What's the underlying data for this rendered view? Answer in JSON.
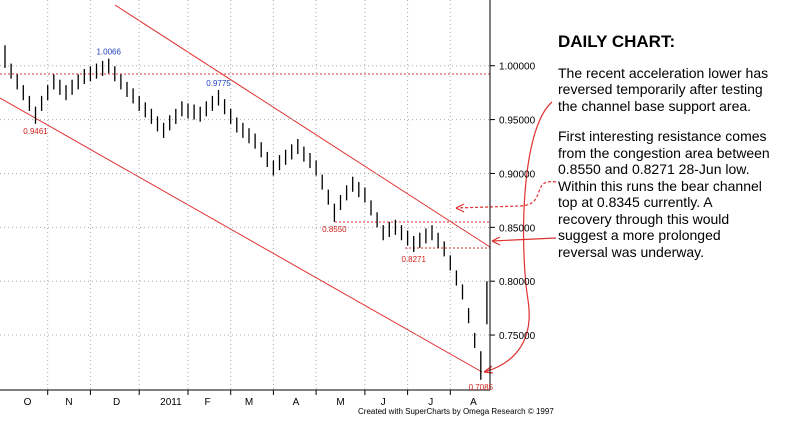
{
  "chart_data": {
    "type": "range_bar",
    "title": "DAILY CHART:",
    "paragraphs": [
      [
        "The recent acceleration lower has",
        "reversed temporarily after testing",
        "the channel base support area."
      ],
      [
        "First interesting resistance comes",
        "from the congestion area between",
        "0.8550 and 0.8271 28-Jun low.",
        "Within this runs the bear channel",
        "top at 0.8345 currently. A",
        "recovery through this would",
        "suggest a more prolonged",
        "reversal was underway."
      ]
    ],
    "footer": "Created with SuperCharts by Omega Research © 1997",
    "color": "#000000",
    "high": [
      1.019,
      1.002,
      0.992,
      0.982,
      0.972,
      0.962,
      0.972,
      0.982,
      0.992,
      0.987,
      0.982,
      0.987,
      0.992,
      0.997,
      0.9995,
      1.002,
      1.0045,
      1.0066,
      0.9995,
      0.992,
      0.985,
      0.979,
      0.972,
      0.966,
      0.96,
      0.953,
      0.947,
      0.954,
      0.96,
      0.967,
      0.965,
      0.964,
      0.962,
      0.967,
      0.972,
      0.9775,
      0.969,
      0.96,
      0.952,
      0.947,
      0.942,
      0.937,
      0.929,
      0.92,
      0.912,
      0.917,
      0.922,
      0.927,
      0.932,
      0.925,
      0.919,
      0.912,
      0.899,
      0.885,
      0.872,
      0.88,
      0.889,
      0.897,
      0.892,
      0.887,
      0.875,
      0.864,
      0.852,
      0.855,
      0.857,
      0.852,
      0.847,
      0.842,
      0.845,
      0.849,
      0.852,
      0.845,
      0.837,
      0.824,
      0.81,
      0.797,
      0.775,
      0.752,
      0.735,
      0.8
    ],
    "low": [
      0.998,
      0.988,
      0.978,
      0.968,
      0.958,
      0.9461,
      0.958,
      0.968,
      0.978,
      0.973,
      0.968,
      0.973,
      0.978,
      0.983,
      0.9855,
      0.988,
      0.9905,
      0.993,
      0.9855,
      0.978,
      0.971,
      0.965,
      0.958,
      0.952,
      0.946,
      0.939,
      0.933,
      0.94,
      0.946,
      0.953,
      0.951,
      0.95,
      0.948,
      0.953,
      0.958,
      0.963,
      0.955,
      0.946,
      0.938,
      0.933,
      0.928,
      0.923,
      0.915,
      0.906,
      0.898,
      0.903,
      0.908,
      0.913,
      0.918,
      0.911,
      0.905,
      0.898,
      0.885,
      0.871,
      0.855,
      0.866,
      0.875,
      0.883,
      0.878,
      0.873,
      0.861,
      0.85,
      0.838,
      0.841,
      0.843,
      0.838,
      0.833,
      0.8271,
      0.831,
      0.835,
      0.838,
      0.831,
      0.823,
      0.81,
      0.796,
      0.783,
      0.761,
      0.738,
      0.7085,
      0.76
    ],
    "high_labels": [
      null,
      null,
      null,
      null,
      null,
      null,
      null,
      null,
      null,
      null,
      null,
      null,
      null,
      null,
      null,
      null,
      null,
      "1.0066",
      null,
      null,
      null,
      null,
      null,
      null,
      null,
      null,
      null,
      null,
      null,
      null,
      null,
      null,
      null,
      null,
      null,
      "0.9775",
      null,
      null,
      null,
      null,
      null,
      null,
      null,
      null,
      null,
      null,
      null,
      null,
      null,
      null,
      null,
      null,
      null,
      null,
      null,
      null,
      null,
      null,
      null,
      null,
      null,
      null,
      null,
      null,
      null,
      null,
      null,
      null,
      null,
      null,
      null,
      null,
      null,
      null,
      null,
      null,
      null,
      null,
      null,
      null
    ],
    "low_labels": [
      null,
      null,
      null,
      null,
      null,
      "0.9461",
      null,
      null,
      null,
      null,
      null,
      null,
      null,
      null,
      null,
      null,
      null,
      null,
      null,
      null,
      null,
      null,
      null,
      null,
      null,
      null,
      null,
      null,
      null,
      null,
      null,
      null,
      null,
      null,
      null,
      null,
      null,
      null,
      null,
      null,
      null,
      null,
      null,
      null,
      null,
      null,
      null,
      null,
      null,
      null,
      null,
      null,
      null,
      null,
      "0.8550",
      null,
      null,
      null,
      null,
      null,
      null,
      null,
      null,
      null,
      null,
      null,
      null,
      "0.8271",
      null,
      null,
      null,
      null,
      null,
      null,
      null,
      null,
      null,
      null,
      "0.7085",
      null
    ],
    "ylim": [
      0.699,
      1.061
    ],
    "yticks": [
      {
        "value": 0.75,
        "label": "0.75000"
      },
      {
        "value": 0.8,
        "label": "0.80000"
      },
      {
        "value": 0.85,
        "label": "0.85000"
      },
      {
        "value": 0.9,
        "label": "0.90000"
      },
      {
        "value": 0.95,
        "label": "0.95000"
      },
      {
        "value": 1,
        "label": "1.00000"
      }
    ],
    "xticks": [
      {
        "value": 3.7,
        "label": "O"
      },
      {
        "value": 10.5,
        "label": "N"
      },
      {
        "value": 18.3,
        "label": "D"
      },
      {
        "value": 27.2,
        "label": "2011"
      },
      {
        "value": 33.2,
        "label": "F"
      },
      {
        "value": 40,
        "label": "M"
      },
      {
        "value": 47.7,
        "label": "A"
      },
      {
        "value": 55,
        "label": "M"
      },
      {
        "value": 62,
        "label": "J"
      },
      {
        "value": 69.8,
        "label": "J"
      },
      {
        "value": 76.8,
        "label": "A"
      }
    ],
    "xgrid": [
      7,
      14,
      22,
      30,
      37,
      44,
      51,
      59,
      66,
      73
    ],
    "grid": true
  }
}
